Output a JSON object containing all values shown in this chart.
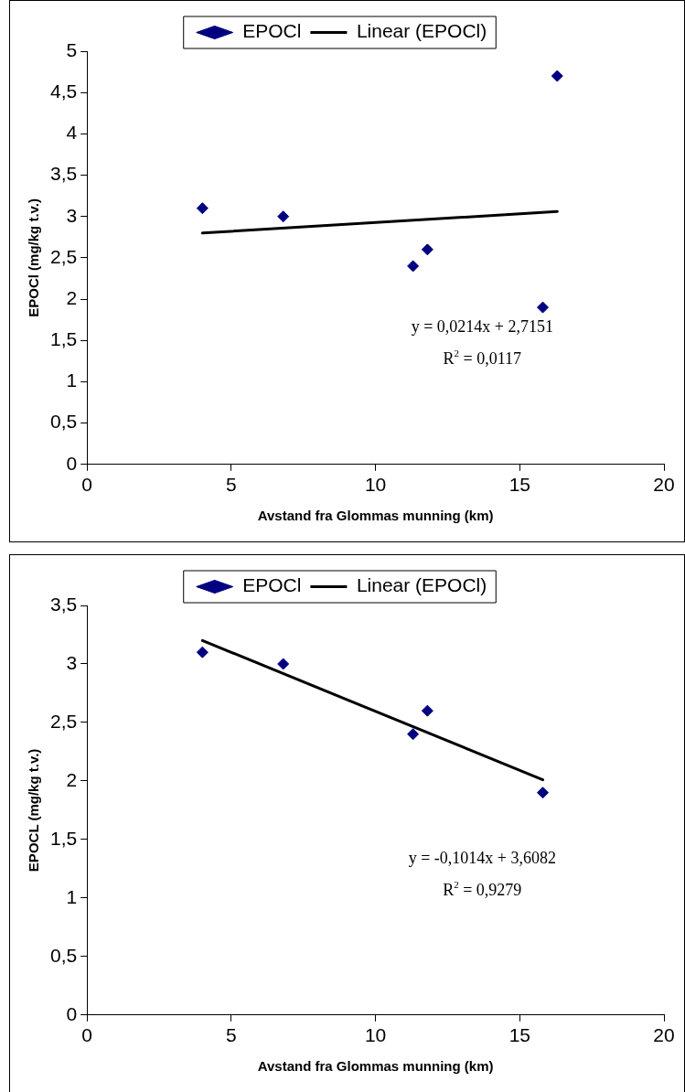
{
  "chart_data": [
    {
      "type": "scatter",
      "xlabel": "Avstand fra Glommas munning (km)",
      "ylabel": "EPOCl (mg/kg t.v.)",
      "legend": "top",
      "grid": false,
      "xlim": [
        0,
        20
      ],
      "xticks": [
        0,
        5,
        10,
        15,
        20
      ],
      "ylim": [
        0,
        5
      ],
      "yticks": [
        0,
        {
          "value": 0.5,
          "label": "0,5"
        },
        1,
        {
          "value": 1.5,
          "label": "1,5"
        },
        2,
        {
          "value": 2.5,
          "label": "2,5"
        },
        3,
        {
          "value": 3.5,
          "label": "3,5"
        },
        4,
        {
          "value": 4.5,
          "label": "4,5"
        },
        5
      ],
      "series": [
        {
          "name": "EPOCl",
          "type": "scatter",
          "marker": "diamond",
          "color": "#000080",
          "x": [
            4.0,
            6.8,
            11.3,
            11.8,
            15.8,
            16.3
          ],
          "values": [
            3.1,
            3.0,
            2.4,
            2.6,
            1.9,
            4.7
          ]
        },
        {
          "name": "Linear (EPOCl)",
          "type": "line",
          "marker": "none",
          "color": "#000000",
          "x": [
            4.0,
            16.3
          ],
          "values": [
            2.8,
            3.06
          ]
        }
      ],
      "annotations": [
        "y = 0,0214x + 2,7151",
        "R$^{2}$ = 0,0117"
      ]
    },
    {
      "type": "scatter",
      "xlabel": "Avstand fra Glommas munning (km)",
      "ylabel": "EPOCL (mg/kg t.v.)",
      "legend": "top",
      "grid": false,
      "xlim": [
        0,
        20
      ],
      "xticks": [
        0,
        5,
        10,
        15,
        20
      ],
      "ylim": [
        0,
        3.5
      ],
      "yticks": [
        0,
        {
          "value": 0.5,
          "label": "0,5"
        },
        1,
        {
          "value": 1.5,
          "label": "1,5"
        },
        2,
        {
          "value": 2.5,
          "label": "2,5"
        },
        3,
        {
          "value": 3.5,
          "label": "3,5"
        }
      ],
      "series": [
        {
          "name": "EPOCl",
          "type": "scatter",
          "marker": "diamond",
          "color": "#000080",
          "x": [
            4.0,
            6.8,
            11.3,
            11.8,
            15.8
          ],
          "values": [
            3.1,
            3.0,
            2.4,
            2.6,
            1.9
          ]
        },
        {
          "name": "Linear (EPOCl)",
          "type": "line",
          "marker": "none",
          "color": "#000000",
          "x": [
            4.0,
            15.8
          ],
          "values": [
            3.2,
            2.01
          ]
        }
      ],
      "annotations": [
        "y = -0,1014x + 3,6082",
        "R$^{2}$ = 0,9279"
      ]
    }
  ]
}
